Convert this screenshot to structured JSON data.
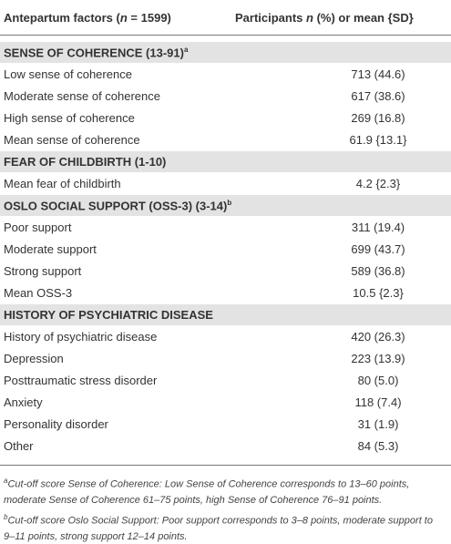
{
  "header": {
    "col1": [
      "Antepartum factors (",
      "n",
      " = 1599)"
    ],
    "col2": [
      "Participants ",
      "n",
      " (%) or mean {SD}"
    ]
  },
  "sections": [
    {
      "title": "SENSE OF COHERENCE (13-91)",
      "note": "a",
      "rows": [
        [
          "Low sense of coherence",
          "713 (44.6)"
        ],
        [
          "Moderate sense of coherence",
          "617 (38.6)"
        ],
        [
          "High sense of coherence",
          "269 (16.8)"
        ],
        [
          "Mean sense of coherence",
          "61.9 {13.1}"
        ]
      ]
    },
    {
      "title": "FEAR OF CHILDBIRTH (1-10)",
      "rows": [
        [
          "Mean fear of childbirth",
          "4.2 {2.3}"
        ]
      ]
    },
    {
      "title": "OSLO SOCIAL SUPPORT (OSS-3) (3-14)",
      "note": "b",
      "rows": [
        [
          "Poor support",
          "311 (19.4)"
        ],
        [
          "Moderate support",
          "699 (43.7)"
        ],
        [
          "Strong support",
          "589 (36.8)"
        ],
        [
          "Mean OSS-3",
          "10.5 {2.3}"
        ]
      ]
    },
    {
      "title": "HISTORY OF PSYCHIATRIC DISEASE",
      "rows": [
        [
          "History of psychiatric disease",
          "420 (26.3)"
        ],
        [
          "Depression",
          "223 (13.9)"
        ],
        [
          "Posttraumatic stress disorder",
          "80 (5.0)"
        ],
        [
          "Anxiety",
          "118 (7.4)"
        ],
        [
          "Personality disorder",
          "31 (1.9)"
        ],
        [
          "Other",
          "84 (5.3)"
        ]
      ]
    }
  ],
  "footnotes": [
    {
      "mark": "a",
      "text": "Cut-off score Sense of Coherence: Low Sense of Coherence corresponds to 13–60 points, moderate Sense of Coherence 61–75 points, high Sense of Coherence 76–91 points."
    },
    {
      "mark": "b",
      "text": "Cut-off score Oslo Social Support: Poor support corresponds to 3–8 points, moderate support to 9–11 points, strong support 12–14 points."
    }
  ]
}
